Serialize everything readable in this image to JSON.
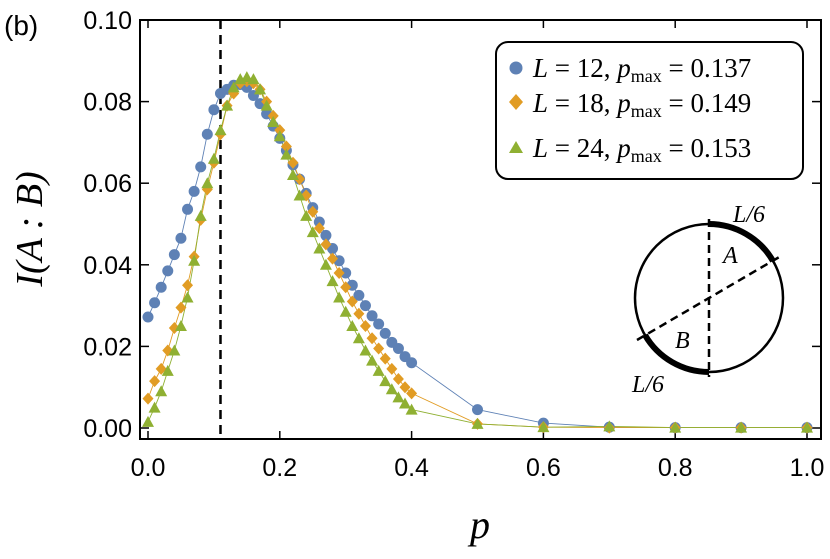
{
  "panel_label": "(b)",
  "chart_data": {
    "type": "scatter",
    "xlabel": "p",
    "ylabel": "I(A : B)",
    "xlim": [
      0,
      1
    ],
    "ylim": [
      0,
      0.1
    ],
    "xticks": [
      "0.0",
      "0.2",
      "0.4",
      "0.6",
      "0.8",
      "1.0"
    ],
    "yticks": [
      "0.00",
      "0.02",
      "0.04",
      "0.06",
      "0.08",
      "0.10"
    ],
    "vertical_dashed_line_x": 0.11,
    "legend_position": "top-right",
    "series": [
      {
        "L": "12",
        "pmax": "0.137",
        "marker": "circle",
        "color": "#5E81B5",
        "x": [
          0.0,
          0.01,
          0.02,
          0.03,
          0.04,
          0.05,
          0.06,
          0.07,
          0.08,
          0.09,
          0.1,
          0.11,
          0.12,
          0.13,
          0.14,
          0.15,
          0.16,
          0.17,
          0.18,
          0.19,
          0.2,
          0.21,
          0.22,
          0.23,
          0.24,
          0.25,
          0.26,
          0.27,
          0.28,
          0.29,
          0.3,
          0.31,
          0.32,
          0.33,
          0.34,
          0.35,
          0.36,
          0.37,
          0.38,
          0.39,
          0.4,
          0.5,
          0.6,
          0.7,
          0.8,
          0.9,
          1.0
        ],
        "y": [
          0.0272,
          0.0307,
          0.0345,
          0.0385,
          0.0425,
          0.0465,
          0.0536,
          0.058,
          0.064,
          0.072,
          0.078,
          0.082,
          0.083,
          0.084,
          0.0842,
          0.0835,
          0.0815,
          0.0795,
          0.077,
          0.074,
          0.071,
          0.068,
          0.0645,
          0.061,
          0.0575,
          0.054,
          0.0505,
          0.0472,
          0.044,
          0.041,
          0.038,
          0.035,
          0.0325,
          0.03,
          0.0275,
          0.0255,
          0.0232,
          0.021,
          0.0195,
          0.0175,
          0.016,
          0.0045,
          0.0012,
          0.0002,
          0.0001,
          0.0001,
          0.0001
        ]
      },
      {
        "L": "18",
        "pmax": "0.149",
        "marker": "diamond",
        "color": "#E19C24",
        "x": [
          0.0,
          0.01,
          0.02,
          0.03,
          0.04,
          0.05,
          0.06,
          0.07,
          0.08,
          0.09,
          0.1,
          0.11,
          0.12,
          0.13,
          0.14,
          0.15,
          0.16,
          0.17,
          0.18,
          0.19,
          0.2,
          0.21,
          0.22,
          0.23,
          0.24,
          0.25,
          0.26,
          0.27,
          0.28,
          0.29,
          0.3,
          0.31,
          0.32,
          0.33,
          0.34,
          0.35,
          0.36,
          0.37,
          0.38,
          0.39,
          0.4,
          0.5,
          0.6,
          0.7,
          0.8,
          0.9,
          1.0
        ],
        "y": [
          0.0072,
          0.0115,
          0.0145,
          0.019,
          0.0245,
          0.0295,
          0.035,
          0.042,
          0.051,
          0.0585,
          0.065,
          0.072,
          0.079,
          0.082,
          0.0845,
          0.085,
          0.0845,
          0.083,
          0.08,
          0.0765,
          0.073,
          0.069,
          0.065,
          0.061,
          0.057,
          0.053,
          0.049,
          0.045,
          0.0415,
          0.038,
          0.0345,
          0.031,
          0.028,
          0.025,
          0.022,
          0.0195,
          0.017,
          0.0145,
          0.012,
          0.01,
          0.0085,
          0.001,
          0.0002,
          0.0001,
          0.0001,
          0.0001,
          0.0001
        ]
      },
      {
        "L": "24",
        "pmax": "0.153",
        "marker": "triangle",
        "color": "#8FB032",
        "x": [
          0.0,
          0.01,
          0.02,
          0.03,
          0.04,
          0.05,
          0.06,
          0.07,
          0.08,
          0.09,
          0.1,
          0.11,
          0.12,
          0.13,
          0.14,
          0.15,
          0.16,
          0.17,
          0.18,
          0.19,
          0.2,
          0.21,
          0.22,
          0.23,
          0.24,
          0.25,
          0.26,
          0.27,
          0.28,
          0.29,
          0.3,
          0.31,
          0.32,
          0.33,
          0.34,
          0.35,
          0.36,
          0.37,
          0.38,
          0.39,
          0.4,
          0.5,
          0.6,
          0.7,
          0.8,
          0.9,
          1.0
        ],
        "y": [
          0.0015,
          0.005,
          0.009,
          0.014,
          0.019,
          0.025,
          0.032,
          0.041,
          0.052,
          0.06,
          0.066,
          0.073,
          0.079,
          0.0835,
          0.0855,
          0.086,
          0.0855,
          0.083,
          0.079,
          0.075,
          0.0715,
          0.067,
          0.062,
          0.057,
          0.052,
          0.048,
          0.044,
          0.04,
          0.036,
          0.032,
          0.0285,
          0.025,
          0.022,
          0.019,
          0.0165,
          0.014,
          0.0115,
          0.0095,
          0.0075,
          0.006,
          0.0045,
          0.001,
          0.0002,
          0.0004,
          0.0001,
          0.0001,
          0.0001
        ]
      }
    ]
  },
  "legend": {
    "entries": [
      {
        "L_label": "L",
        "eq1": " = 12, ",
        "p_label": "p",
        "sub": "max",
        "eq2": " = 0.137"
      },
      {
        "L_label": "L",
        "eq1": " = 18, ",
        "p_label": "p",
        "sub": "max",
        "eq2": " = 0.149"
      },
      {
        "L_label": "L",
        "eq1": " = 24, ",
        "p_label": "p",
        "sub": "max",
        "eq2": " = 0.153"
      }
    ]
  },
  "inset": {
    "label_top": "L/6",
    "label_bottom": "L/6",
    "region_a": "A",
    "region_b": "B"
  }
}
